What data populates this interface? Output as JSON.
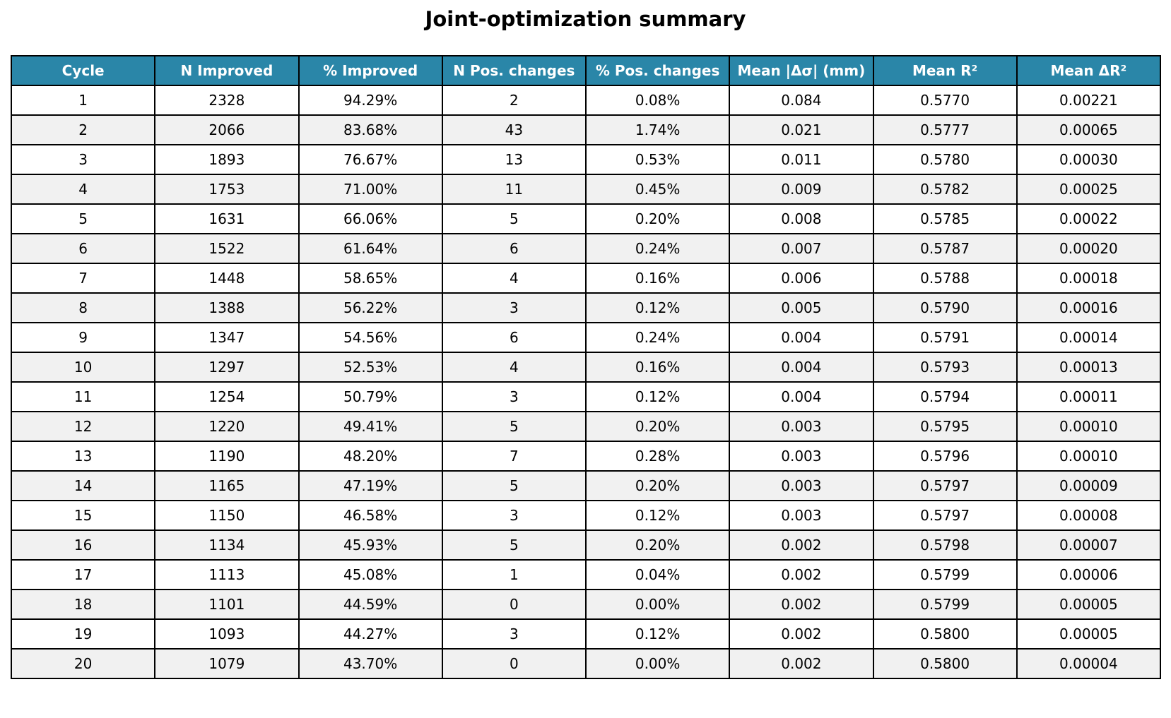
{
  "chart_data": {
    "type": "table",
    "title": "Joint-optimization summary",
    "columns": [
      "Cycle",
      "N Improved",
      "% Improved",
      "N Pos. changes",
      "% Pos. changes",
      "Mean |Δσ| (mm)",
      "Mean R²",
      "Mean ΔR²"
    ],
    "rows": [
      [
        "1",
        "2328",
        "94.29%",
        "2",
        "0.08%",
        "0.084",
        "0.5770",
        "0.00221"
      ],
      [
        "2",
        "2066",
        "83.68%",
        "43",
        "1.74%",
        "0.021",
        "0.5777",
        "0.00065"
      ],
      [
        "3",
        "1893",
        "76.67%",
        "13",
        "0.53%",
        "0.011",
        "0.5780",
        "0.00030"
      ],
      [
        "4",
        "1753",
        "71.00%",
        "11",
        "0.45%",
        "0.009",
        "0.5782",
        "0.00025"
      ],
      [
        "5",
        "1631",
        "66.06%",
        "5",
        "0.20%",
        "0.008",
        "0.5785",
        "0.00022"
      ],
      [
        "6",
        "1522",
        "61.64%",
        "6",
        "0.24%",
        "0.007",
        "0.5787",
        "0.00020"
      ],
      [
        "7",
        "1448",
        "58.65%",
        "4",
        "0.16%",
        "0.006",
        "0.5788",
        "0.00018"
      ],
      [
        "8",
        "1388",
        "56.22%",
        "3",
        "0.12%",
        "0.005",
        "0.5790",
        "0.00016"
      ],
      [
        "9",
        "1347",
        "54.56%",
        "6",
        "0.24%",
        "0.004",
        "0.5791",
        "0.00014"
      ],
      [
        "10",
        "1297",
        "52.53%",
        "4",
        "0.16%",
        "0.004",
        "0.5793",
        "0.00013"
      ],
      [
        "11",
        "1254",
        "50.79%",
        "3",
        "0.12%",
        "0.004",
        "0.5794",
        "0.00011"
      ],
      [
        "12",
        "1220",
        "49.41%",
        "5",
        "0.20%",
        "0.003",
        "0.5795",
        "0.00010"
      ],
      [
        "13",
        "1190",
        "48.20%",
        "7",
        "0.28%",
        "0.003",
        "0.5796",
        "0.00010"
      ],
      [
        "14",
        "1165",
        "47.19%",
        "5",
        "0.20%",
        "0.003",
        "0.5797",
        "0.00009"
      ],
      [
        "15",
        "1150",
        "46.58%",
        "3",
        "0.12%",
        "0.003",
        "0.5797",
        "0.00008"
      ],
      [
        "16",
        "1134",
        "45.93%",
        "5",
        "0.20%",
        "0.002",
        "0.5798",
        "0.00007"
      ],
      [
        "17",
        "1113",
        "45.08%",
        "1",
        "0.04%",
        "0.002",
        "0.5799",
        "0.00006"
      ],
      [
        "18",
        "1101",
        "44.59%",
        "0",
        "0.00%",
        "0.002",
        "0.5799",
        "0.00005"
      ],
      [
        "19",
        "1093",
        "44.27%",
        "3",
        "0.12%",
        "0.002",
        "0.5800",
        "0.00005"
      ],
      [
        "20",
        "1079",
        "43.70%",
        "0",
        "0.00%",
        "0.002",
        "0.5800",
        "0.00004"
      ]
    ],
    "header_color": "#2a86a8",
    "header_text_color": "#ffffff",
    "stripe_color": "#f1f1f1",
    "border_color": "#000000"
  }
}
